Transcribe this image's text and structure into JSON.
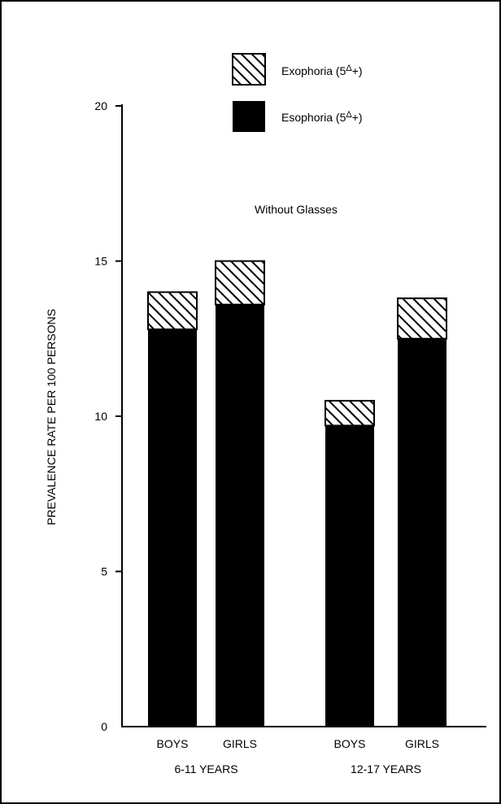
{
  "chart_data": {
    "type": "bar",
    "stacked": true,
    "annotation": "Without Glasses",
    "ylabel": "PREVALENCE RATE PER 100 PERSONS",
    "xlabel": "",
    "ylim": [
      0,
      20
    ],
    "yticks": [
      0,
      5,
      10,
      15,
      20
    ],
    "categories": [
      "BOYS",
      "GIRLS",
      "BOYS",
      "GIRLS"
    ],
    "groups": [
      {
        "label": "6-11 YEARS",
        "categories": [
          0,
          1
        ]
      },
      {
        "label": "12-17 YEARS",
        "categories": [
          2,
          3
        ]
      }
    ],
    "series": [
      {
        "name": "Esophoria (5Δ+)",
        "values": [
          12.8,
          13.6,
          9.7,
          12.5
        ],
        "color": "#000000",
        "pattern": "solid"
      },
      {
        "name": "Exophoria (5Δ+)",
        "values": [
          1.2,
          1.4,
          0.8,
          1.3
        ],
        "color": "#000000",
        "pattern": "diagonal-hatch"
      }
    ],
    "legend": [
      "Exophoria (5Δ+)",
      "Esophoria (5Δ+)"
    ],
    "legend_position": "top-right",
    "grid": false
  }
}
